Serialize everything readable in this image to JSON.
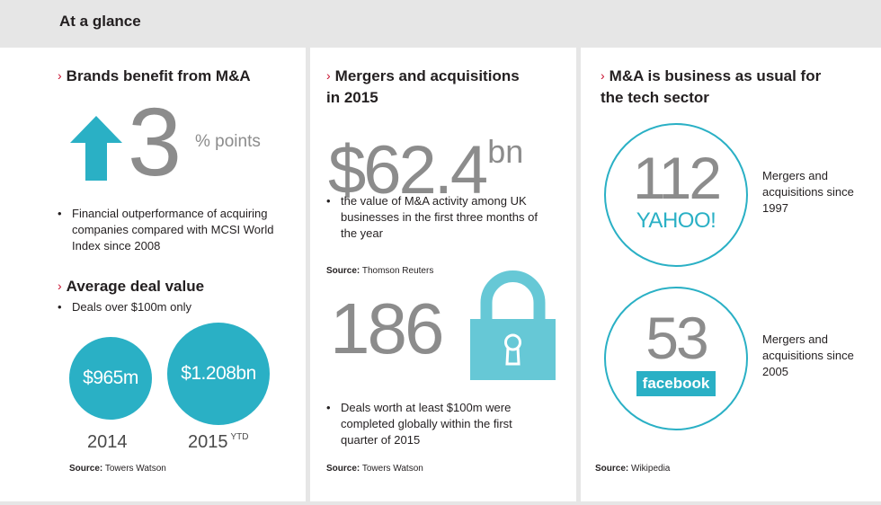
{
  "header": {
    "title": "At a glance"
  },
  "col1": {
    "heading1": "Brands benefit from M&A",
    "stat_value": "3",
    "stat_unit": "% points",
    "bullet1": "Financial outperformance of acquiring companies compared with MCSI World Index since 2008",
    "heading2": "Average deal value",
    "bullet2": "Deals over $100m only",
    "circle1_value": "$965m",
    "circle2_value": "$1.208bn",
    "year1": "2014",
    "year2": "2015",
    "year2_sup": "YTD",
    "source_label": "Source:",
    "source_name": "Towers Watson"
  },
  "col2": {
    "heading_line1": "Mergers and acquisitions",
    "heading_line2": "in 2015",
    "stat1_value": "$62.4",
    "stat1_unit": "bn",
    "bullet1": "the value of M&A activity among UK businesses in the first three months of the year",
    "source1_label": "Source:",
    "source1_name": "Thomson Reuters",
    "stat2_value": "186",
    "bullet2": "Deals worth at least $100m were completed globally within the first quarter of 2015",
    "source2_label": "Source:",
    "source2_name": "Towers Watson"
  },
  "col3": {
    "heading_line1": "M&A is business as usual for",
    "heading_line2": "the tech sector",
    "item1_value": "112",
    "item1_brand": "YAHOO!",
    "item1_text": "Mergers and acquisitions since 1997",
    "item2_value": "53",
    "item2_brand": "facebook",
    "item2_text": "Mergers and acquisitions since 2005",
    "source_label": "Source:",
    "source_name": "Wikipedia"
  },
  "icons": {
    "col1_stat": "arrow-up-icon",
    "col2_stat2": "padlock-icon",
    "heading_marker": "chevron-right-icon"
  },
  "colors": {
    "accent": "#2ab0c5",
    "chevron": "#c8102e",
    "big_number": "#8c8c8c",
    "background": "#e6e6e6"
  }
}
